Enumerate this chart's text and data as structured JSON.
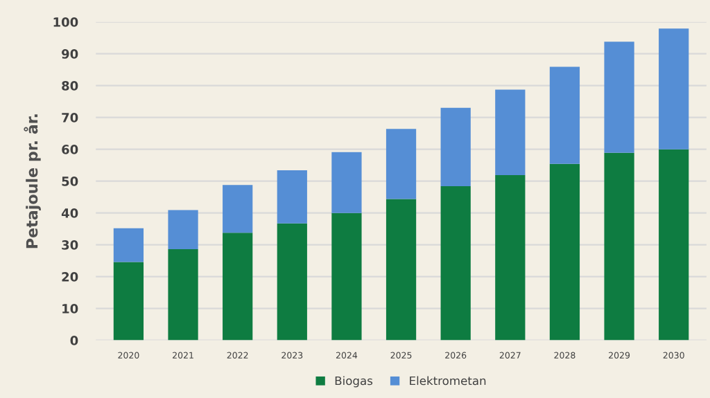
{
  "chart_data": {
    "type": "bar",
    "stacked": true,
    "ylabel": "Petajoule pr. år.",
    "categories": [
      "2020",
      "2021",
      "2022",
      "2023",
      "2024",
      "2025",
      "2026",
      "2027",
      "2028",
      "2029",
      "2030"
    ],
    "series": [
      {
        "name": "Biogas",
        "color": "#0e7c41",
        "values": [
          24.6,
          28.6,
          33.8,
          36.7,
          40.0,
          44.4,
          48.4,
          51.9,
          55.4,
          58.9,
          60.0
        ]
      },
      {
        "name": "Elektrometan",
        "color": "#558ed5",
        "values": [
          10.6,
          12.3,
          15.0,
          16.7,
          19.1,
          22.0,
          24.6,
          26.8,
          30.5,
          34.9,
          37.9
        ]
      }
    ],
    "ylim": [
      0,
      100
    ],
    "yticks": [
      0,
      10,
      20,
      30,
      40,
      50,
      60,
      70,
      80,
      90,
      100
    ],
    "grid": "y",
    "legend": "bottom"
  }
}
